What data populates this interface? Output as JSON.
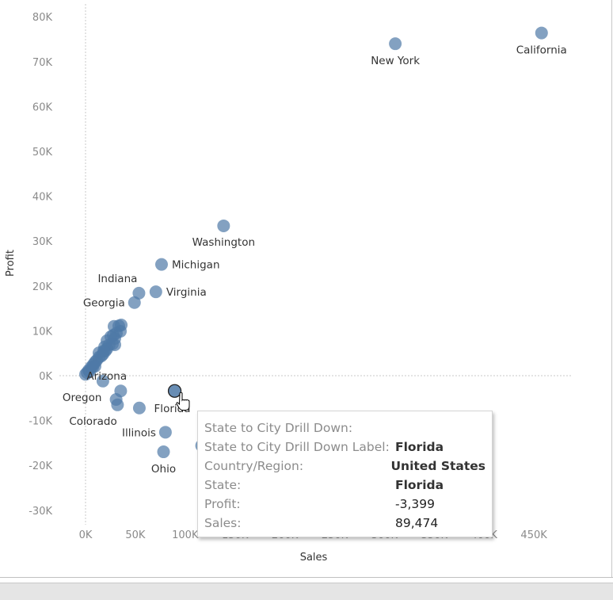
{
  "chart_data": {
    "type": "scatter",
    "xlabel": "Sales",
    "ylabel": "Profit",
    "xlim": [
      -20,
      490
    ],
    "ylim": [
      -33,
      83
    ],
    "x_ticks": [
      "0K",
      "50K",
      "100K",
      "150K",
      "200K",
      "250K",
      "300K",
      "350K",
      "400K",
      "450K"
    ],
    "x_tick_values": [
      0,
      50,
      100,
      150,
      200,
      250,
      300,
      350,
      400,
      450
    ],
    "y_ticks": [
      "80K",
      "70K",
      "60K",
      "50K",
      "40K",
      "30K",
      "20K",
      "10K",
      "0K",
      "-10K",
      "-20K",
      "-30K"
    ],
    "y_tick_values": [
      80,
      70,
      60,
      50,
      40,
      30,
      20,
      10,
      0,
      -10,
      -20,
      -30
    ],
    "units": "thousands",
    "color": "#4e79a7",
    "grid": false,
    "zero_lines": true,
    "points": [
      {
        "x": 457.7,
        "y": 76.4,
        "label": "California"
      },
      {
        "x": 310.9,
        "y": 74.0,
        "label": "New York"
      },
      {
        "x": 138.6,
        "y": 33.4,
        "label": "Washington"
      },
      {
        "x": 76.3,
        "y": 24.8,
        "label": "Michigan"
      },
      {
        "x": 70.6,
        "y": 18.7,
        "label": "Virginia"
      },
      {
        "x": 53.6,
        "y": 18.4,
        "label": "Indiana"
      },
      {
        "x": 49.1,
        "y": 16.3,
        "label": "Georgia"
      },
      {
        "x": 89.474,
        "y": -3.399,
        "label": "Florida",
        "highlighted": true
      },
      {
        "x": 35.3,
        "y": -3.4,
        "label": "Arizona"
      },
      {
        "x": 17.4,
        "y": -1.2,
        "label": "Oregon"
      },
      {
        "x": 32.1,
        "y": -6.5,
        "label": "Colorado"
      },
      {
        "x": 80.2,
        "y": -12.6,
        "label": "Illinois"
      },
      {
        "x": 78.3,
        "y": -16.97,
        "label": "Ohio"
      },
      {
        "x": 116.5,
        "y": -15.6
      },
      {
        "x": 30.7,
        "y": -5.3
      },
      {
        "x": 54.0,
        "y": -7.2
      },
      {
        "x": 0,
        "y": 0.3
      },
      {
        "x": 1.6,
        "y": 0.7
      },
      {
        "x": 3.2,
        "y": 1.2
      },
      {
        "x": 5.6,
        "y": 1.9
      },
      {
        "x": 7.9,
        "y": 2.5
      },
      {
        "x": 9.5,
        "y": 3.0
      },
      {
        "x": 11.1,
        "y": 3.4
      },
      {
        "x": 13.5,
        "y": 4.1
      },
      {
        "x": 15.9,
        "y": 4.4
      },
      {
        "x": 17.5,
        "y": 4.8
      },
      {
        "x": 19.9,
        "y": 5.5
      },
      {
        "x": 21.5,
        "y": 6.0
      },
      {
        "x": 23.8,
        "y": 6.9
      },
      {
        "x": 19.1,
        "y": 6.4
      },
      {
        "x": 27.0,
        "y": 7.1
      },
      {
        "x": 29.4,
        "y": 6.9
      },
      {
        "x": 25.4,
        "y": 8.7
      },
      {
        "x": 27.8,
        "y": 9.0
      },
      {
        "x": 31.0,
        "y": 9.5
      },
      {
        "x": 35.0,
        "y": 9.9
      },
      {
        "x": 33.4,
        "y": 11.1
      },
      {
        "x": 28.6,
        "y": 11.0
      },
      {
        "x": 35.8,
        "y": 11.3
      },
      {
        "x": 21.5,
        "y": 7.8
      },
      {
        "x": 13.5,
        "y": 5.1
      },
      {
        "x": 9.5,
        "y": 2.1
      },
      {
        "x": 4.0,
        "y": 0.9
      },
      {
        "x": 7.2,
        "y": 1.9
      },
      {
        "x": 29.4,
        "y": 8.3
      },
      {
        "x": 18.3,
        "y": 5.5
      }
    ]
  },
  "tooltip": {
    "rows": [
      {
        "key": "State to City Drill Down:",
        "value": ""
      },
      {
        "key": "State to City Drill Down Label:",
        "value": "Florida"
      },
      {
        "key": "Country/Region:",
        "value": "United States"
      },
      {
        "key": "State:",
        "value": "Florida"
      },
      {
        "key": "Profit:",
        "value": "-3,399"
      },
      {
        "key": "Sales:",
        "value": "89,474"
      }
    ]
  }
}
